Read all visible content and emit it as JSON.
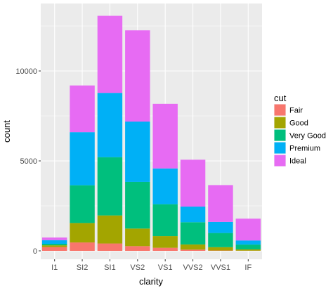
{
  "chart_data": {
    "type": "bar",
    "stacked": true,
    "categories": [
      "I1",
      "SI2",
      "SI1",
      "VS2",
      "VS1",
      "VVS2",
      "VVS1",
      "IF"
    ],
    "series": [
      {
        "name": "Fair",
        "color": "#F8766D",
        "values": [
          210,
          466,
          408,
          261,
          170,
          69,
          17,
          9
        ]
      },
      {
        "name": "Good",
        "color": "#A3A500",
        "values": [
          96,
          1081,
          1560,
          978,
          648,
          286,
          186,
          71
        ]
      },
      {
        "name": "Very Good",
        "color": "#00BF7D",
        "values": [
          84,
          2100,
          3240,
          2591,
          1775,
          1235,
          789,
          268
        ]
      },
      {
        "name": "Premium",
        "color": "#00B0F6",
        "values": [
          205,
          2949,
          3575,
          3357,
          1989,
          870,
          616,
          230
        ]
      },
      {
        "name": "Ideal",
        "color": "#E76BF3",
        "values": [
          146,
          2598,
          4282,
          5071,
          3589,
          2606,
          2047,
          1212
        ]
      }
    ],
    "xlabel": "clarity",
    "ylabel": "count",
    "ylim": [
      0,
      13600
    ],
    "yticks": [
      0,
      5000,
      10000
    ],
    "ytick_labels": [
      "0",
      "5000",
      "10000"
    ],
    "legend": {
      "title": "cut",
      "position": "right"
    },
    "grid": true,
    "panel_background": "#EBEBEB"
  }
}
